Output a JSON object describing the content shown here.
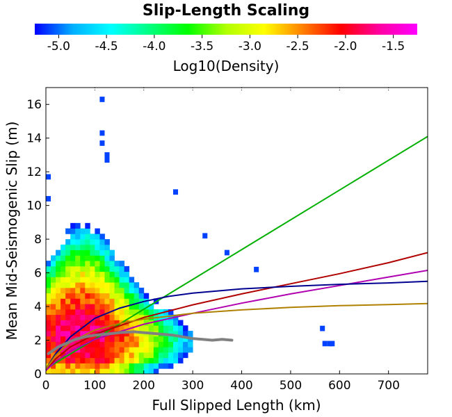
{
  "chart_data": {
    "type": "heatmap",
    "title": "Slip-Length Scaling",
    "xlabel": "Full Slipped Length (km)",
    "ylabel": "Mean Mid-Seismogenic Slip (m)",
    "xlim": [
      0,
      780
    ],
    "ylim": [
      0,
      17
    ],
    "x_ticks": [
      0,
      100,
      200,
      300,
      400,
      500,
      600,
      700
    ],
    "y_ticks": [
      0,
      2,
      4,
      6,
      8,
      10,
      12,
      14,
      16
    ],
    "grid": false,
    "colorbar": {
      "label": "Log10(Density)",
      "range": [
        -5.25,
        -1.25
      ],
      "ticks": [
        -5.0,
        -4.5,
        -4.0,
        -3.5,
        -3.0,
        -2.5,
        -2.0,
        -1.5
      ],
      "tick_labels": [
        "-5.0",
        "-4.5",
        "-4.0",
        "-3.5",
        "-3.0",
        "-2.5",
        "-2.0",
        "-1.5"
      ],
      "colormap": [
        "#0000ff",
        "#00b0ff",
        "#00ffff",
        "#00ff80",
        "#00ff00",
        "#b0ff00",
        "#ffff00",
        "#ff8000",
        "#ff0000",
        "#ff00a0",
        "#ff00ff"
      ]
    },
    "heatmap": {
      "bin_x_km": 10,
      "bin_y_m": 0.32,
      "core_center": [
        70,
        2.2
      ],
      "core_log10_density": -1.7,
      "outliers": [
        {
          "x": 115,
          "y": 16.3
        },
        {
          "x": 115,
          "y": 14.3
        },
        {
          "x": 115,
          "y": 13.7
        },
        {
          "x": 125,
          "y": 13.0
        },
        {
          "x": 125,
          "y": 12.7
        },
        {
          "x": 5,
          "y": 11.7
        },
        {
          "x": 5,
          "y": 10.4
        },
        {
          "x": 265,
          "y": 10.8
        },
        {
          "x": 325,
          "y": 8.2
        },
        {
          "x": 370,
          "y": 7.2
        },
        {
          "x": 430,
          "y": 6.2
        },
        {
          "x": 565,
          "y": 2.7
        },
        {
          "x": 570,
          "y": 1.8
        },
        {
          "x": 580,
          "y": 1.8
        },
        {
          "x": 585,
          "y": 1.8
        }
      ]
    },
    "series": [
      {
        "color": "#00b000",
        "x": [
          0,
          780
        ],
        "y": [
          0.3,
          14.1
        ]
      },
      {
        "color": "#b00000",
        "x": [
          0,
          20,
          50,
          100,
          200,
          300,
          400,
          500,
          600,
          700,
          780
        ],
        "y": [
          0.2,
          0.9,
          1.6,
          2.35,
          3.35,
          4.1,
          4.75,
          5.35,
          5.95,
          6.6,
          7.2
        ]
      },
      {
        "color": "#b000b0",
        "x": [
          0,
          20,
          50,
          100,
          200,
          300,
          400,
          500,
          600,
          700,
          780
        ],
        "y": [
          0.2,
          0.75,
          1.35,
          2.05,
          2.95,
          3.6,
          4.2,
          4.75,
          5.25,
          5.75,
          6.15
        ]
      },
      {
        "color": "#000090",
        "x": [
          0,
          20,
          50,
          100,
          150,
          200,
          250,
          300,
          400,
          500,
          600,
          700,
          780
        ],
        "y": [
          0.3,
          1.2,
          2.2,
          3.3,
          3.9,
          4.3,
          4.6,
          4.8,
          5.05,
          5.2,
          5.32,
          5.4,
          5.5
        ]
      },
      {
        "color": "#b08000",
        "x": [
          0,
          20,
          50,
          100,
          150,
          200,
          300,
          400,
          500,
          600,
          700,
          780
        ],
        "y": [
          0.3,
          1.1,
          1.9,
          2.6,
          3.0,
          3.25,
          3.6,
          3.8,
          3.95,
          4.05,
          4.12,
          4.18
        ]
      },
      {
        "color": "#808080",
        "x": [
          5,
          15,
          25,
          40,
          60,
          80,
          100,
          120,
          150,
          180,
          200,
          220,
          240,
          260,
          280,
          300,
          320,
          340,
          360,
          380
        ],
        "y": [
          1.2,
          1.4,
          1.6,
          1.8,
          2.05,
          2.2,
          2.3,
          2.35,
          2.45,
          2.5,
          2.45,
          2.4,
          2.35,
          2.3,
          2.2,
          2.1,
          2.05,
          2.0,
          2.05,
          2.0
        ]
      }
    ]
  }
}
